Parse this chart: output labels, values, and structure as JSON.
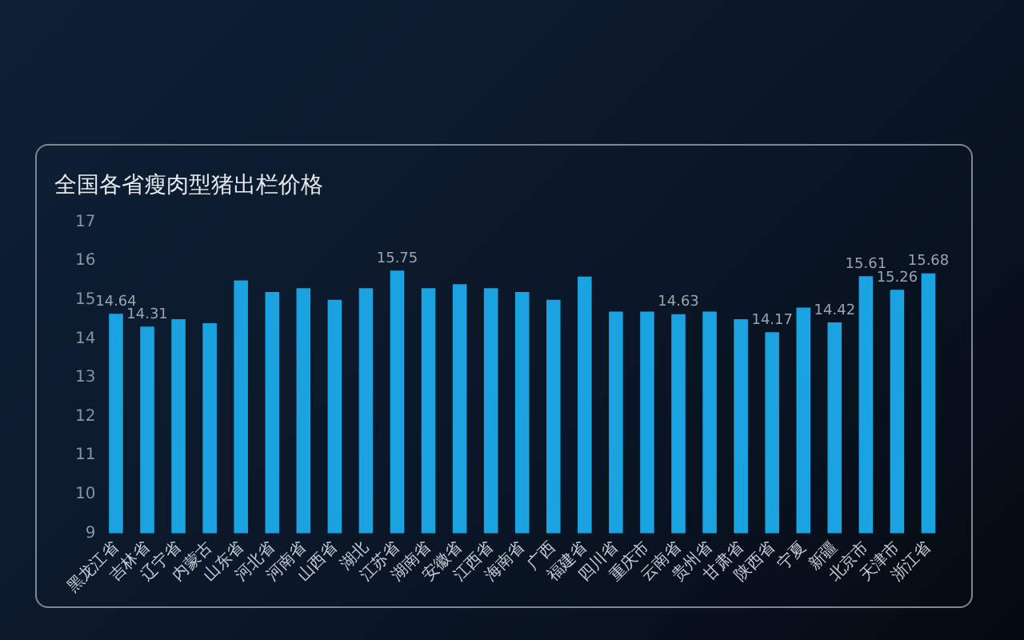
{
  "chart_data": {
    "type": "bar",
    "title": "全国各省瘦肉型猪出栏价格",
    "categories": [
      "黑龙江省",
      "吉林省",
      "辽宁省",
      "内蒙古",
      "山东省",
      "河北省",
      "河南省",
      "山西省",
      "湖北",
      "江苏省",
      "湖南省",
      "安徽省",
      "江西省",
      "海南省",
      "广西",
      "福建省",
      "四川省",
      "重庆市",
      "云南省",
      "贵州省",
      "甘肃省",
      "陕西省",
      "宁夏",
      "新疆",
      "北京市",
      "天津市",
      "浙江省"
    ],
    "values": [
      14.64,
      14.31,
      14.5,
      14.4,
      15.5,
      15.2,
      15.3,
      15.0,
      15.3,
      15.75,
      15.3,
      15.4,
      15.3,
      15.2,
      15.0,
      15.6,
      14.7,
      14.7,
      14.63,
      14.7,
      14.5,
      14.17,
      14.8,
      14.42,
      15.61,
      15.26,
      15.68
    ],
    "value_labels": [
      "14.64",
      "14.31",
      null,
      null,
      null,
      null,
      null,
      null,
      null,
      "15.75",
      null,
      null,
      null,
      null,
      null,
      null,
      null,
      null,
      "14.63",
      null,
      null,
      "14.17",
      null,
      "14.42",
      "15.61",
      "15.26",
      "15.68"
    ],
    "color": "#1aa3e0",
    "ylim": [
      9,
      17
    ],
    "yticks": [
      9,
      10,
      11,
      12,
      13,
      14,
      15,
      16,
      17
    ],
    "grid": false,
    "legend": false
  }
}
